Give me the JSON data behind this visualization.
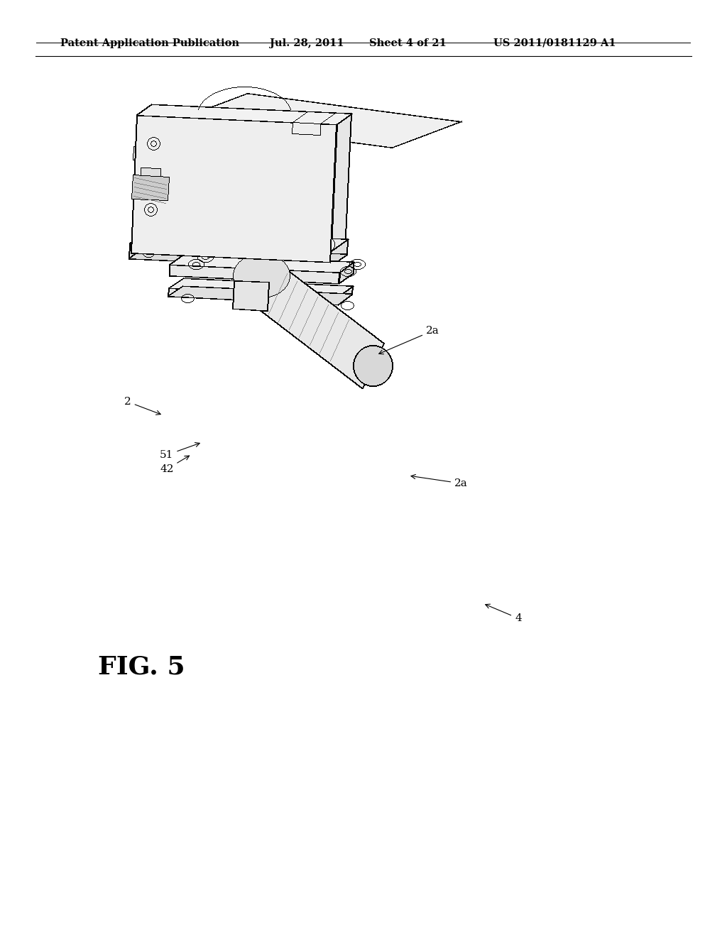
{
  "background_color": "#ffffff",
  "line_color": "#2a2a2a",
  "lw_main": 1.3,
  "lw_thin": 0.7,
  "lw_dashed": 0.6,
  "header_text": "Patent Application Publication",
  "header_date": "Jul. 28, 2011",
  "header_sheet": "Sheet 4 of 21",
  "header_patent": "US 2011/0181129 A1",
  "fig_label": "FIG. 5",
  "header_fontsize": 11,
  "fig_label_fontsize": 26,
  "label_fontsize": 11
}
